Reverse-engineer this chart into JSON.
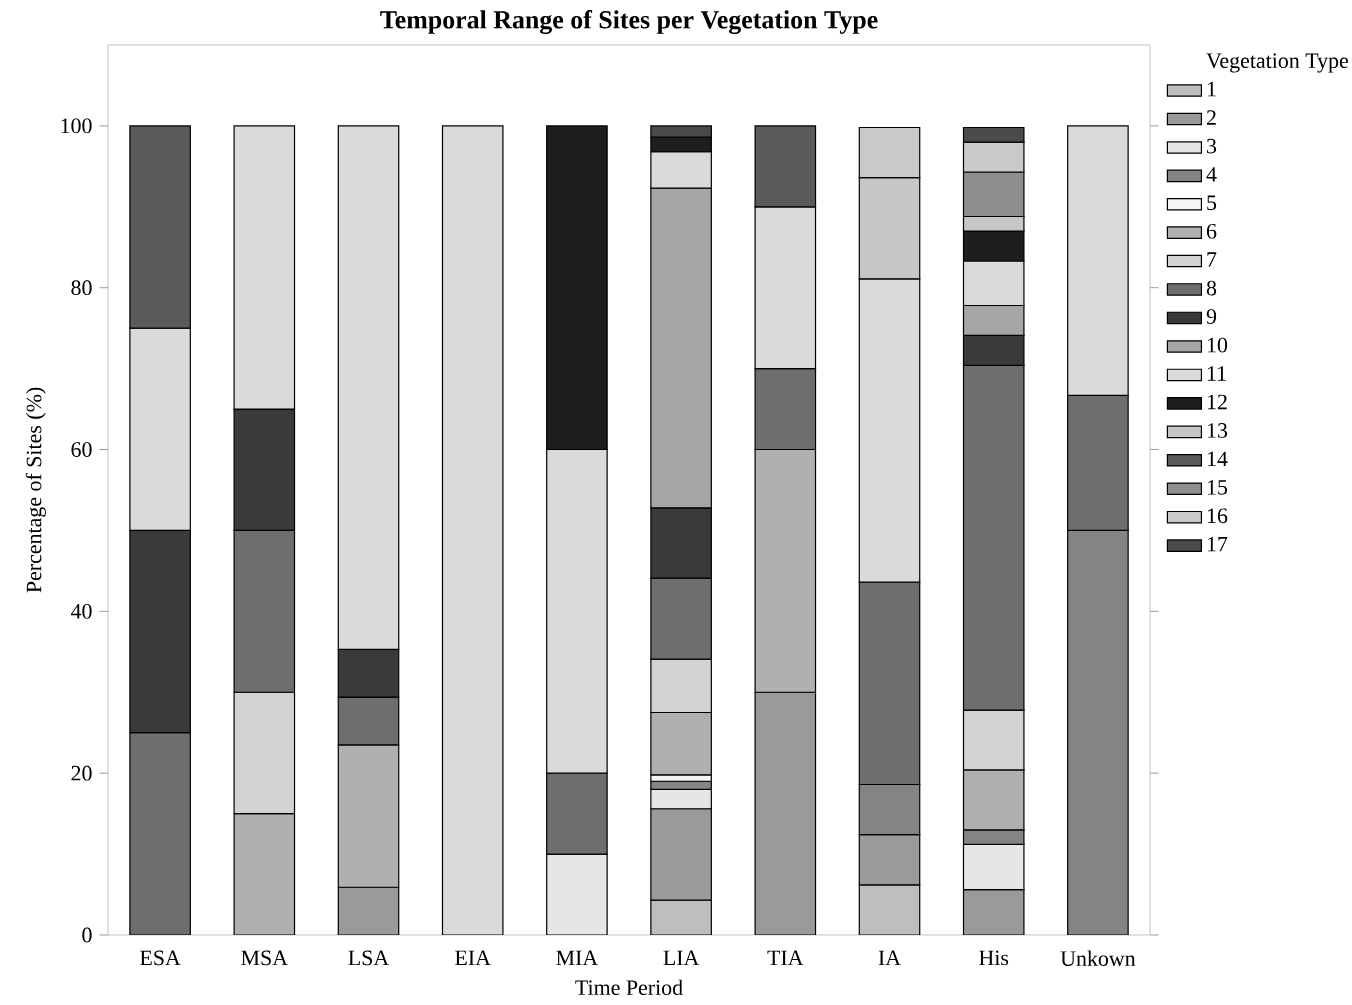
{
  "chart_data": {
    "type": "bar",
    "stacked": true,
    "title": "Temporal Range of Sites per Vegetation Type",
    "xlabel": "Time Period",
    "ylabel": "Percentage of Sites (%)",
    "legend_title": "Vegetation Type",
    "legend": "right",
    "categories": [
      "ESA",
      "MSA",
      "LSA",
      "EIA",
      "MIA",
      "LIA",
      "TIA",
      "IA",
      "His",
      "Unkown"
    ],
    "ylim": [
      0,
      110
    ],
    "yticks": [
      0,
      20,
      40,
      60,
      80,
      100
    ],
    "series": [
      {
        "name": "1",
        "color": "#bebebe",
        "values": [
          null,
          null,
          null,
          null,
          null,
          4.3,
          null,
          6.2,
          null,
          null
        ]
      },
      {
        "name": "2",
        "color": "#9a9a9a",
        "values": [
          null,
          null,
          5.9,
          null,
          null,
          11.3,
          30,
          6.2,
          5.6,
          null
        ]
      },
      {
        "name": "3",
        "color": "#e6e6e6",
        "values": [
          null,
          null,
          null,
          null,
          10,
          2.4,
          null,
          null,
          5.6,
          null
        ]
      },
      {
        "name": "4",
        "color": "#848484",
        "values": [
          null,
          null,
          null,
          null,
          null,
          1,
          null,
          6.2,
          1.8,
          50
        ]
      },
      {
        "name": "5",
        "color": "#f4f4f4",
        "values": [
          null,
          null,
          null,
          null,
          null,
          0.8,
          null,
          null,
          null,
          null
        ]
      },
      {
        "name": "6",
        "color": "#b0b0b0",
        "values": [
          null,
          15,
          17.6,
          null,
          null,
          7.7,
          30,
          null,
          7.4,
          null
        ]
      },
      {
        "name": "7",
        "color": "#d2d2d2",
        "values": [
          null,
          15,
          null,
          null,
          null,
          6.6,
          null,
          null,
          7.4,
          null
        ]
      },
      {
        "name": "8",
        "color": "#6e6e6e",
        "values": [
          25,
          20,
          5.9,
          null,
          10,
          10,
          10,
          25,
          42.6,
          16.7
        ]
      },
      {
        "name": "9",
        "color": "#3a3a3a",
        "values": [
          25,
          15,
          5.9,
          null,
          null,
          8.7,
          null,
          null,
          3.7,
          null
        ]
      },
      {
        "name": "10",
        "color": "#a6a6a6",
        "values": [
          null,
          null,
          null,
          null,
          null,
          39.5,
          null,
          null,
          3.7,
          null
        ]
      },
      {
        "name": "11",
        "color": "#dadada",
        "values": [
          25,
          35,
          64.7,
          100,
          40,
          4.5,
          20,
          37.5,
          5.5,
          33.3
        ]
      },
      {
        "name": "12",
        "color": "#1e1e1e",
        "values": [
          null,
          null,
          null,
          null,
          40,
          1.8,
          null,
          null,
          3.7,
          null
        ]
      },
      {
        "name": "13",
        "color": "#c6c6c6",
        "values": [
          null,
          null,
          null,
          null,
          null,
          null,
          null,
          12.5,
          1.8,
          null
        ]
      },
      {
        "name": "14",
        "color": "#5a5a5a",
        "values": [
          25,
          null,
          null,
          null,
          null,
          null,
          10,
          null,
          null,
          null
        ]
      },
      {
        "name": "15",
        "color": "#8e8e8e",
        "values": [
          null,
          null,
          null,
          null,
          null,
          null,
          null,
          null,
          5.5,
          null
        ]
      },
      {
        "name": "16",
        "color": "#cacaca",
        "values": [
          null,
          null,
          null,
          null,
          null,
          null,
          null,
          6.2,
          3.7,
          null
        ]
      },
      {
        "name": "17",
        "color": "#4a4a4a",
        "values": [
          null,
          null,
          null,
          null,
          null,
          1.4,
          null,
          null,
          1.8,
          null
        ]
      }
    ]
  }
}
